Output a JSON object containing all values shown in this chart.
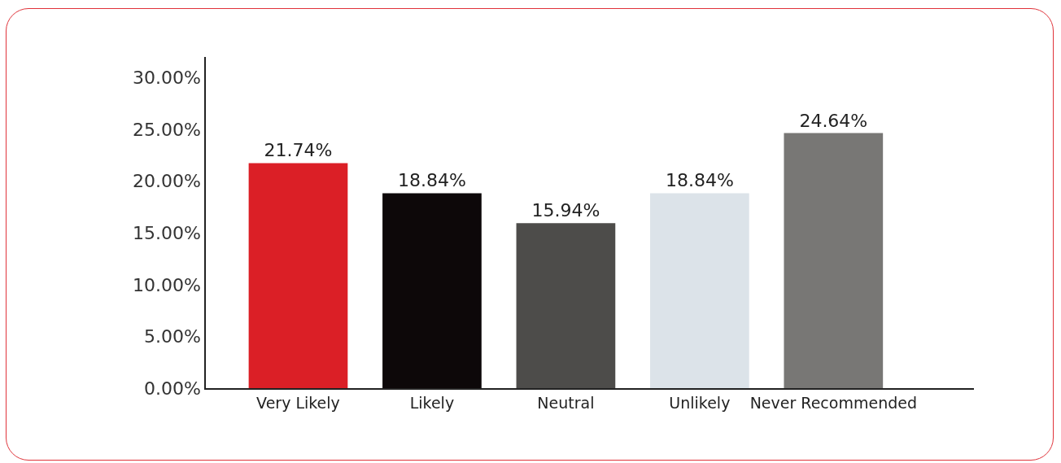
{
  "chart_data": {
    "type": "bar",
    "categories": [
      "Very Likely",
      "Likely",
      "Neutral",
      "Unlikely",
      "Never Recommended"
    ],
    "values": [
      21.74,
      18.84,
      15.94,
      18.84,
      24.64
    ],
    "colors": [
      "#db1f26",
      "#0d0809",
      "#4d4c4a",
      "#dce3e9",
      "#787775"
    ],
    "value_labels": [
      "21.74%",
      "18.84%",
      "15.94%",
      "18.84%",
      "24.64%"
    ],
    "ylim": [
      0,
      32
    ],
    "yticks": [
      {
        "value": 0,
        "label": "0.00%"
      },
      {
        "value": 5,
        "label": "5.00%"
      },
      {
        "value": 10,
        "label": "10.00%"
      },
      {
        "value": 15,
        "label": "15.00%"
      },
      {
        "value": 20,
        "label": "20.00%"
      },
      {
        "value": 25,
        "label": "25.00%"
      },
      {
        "value": 30,
        "label": "30.00%"
      }
    ],
    "grid": false
  }
}
